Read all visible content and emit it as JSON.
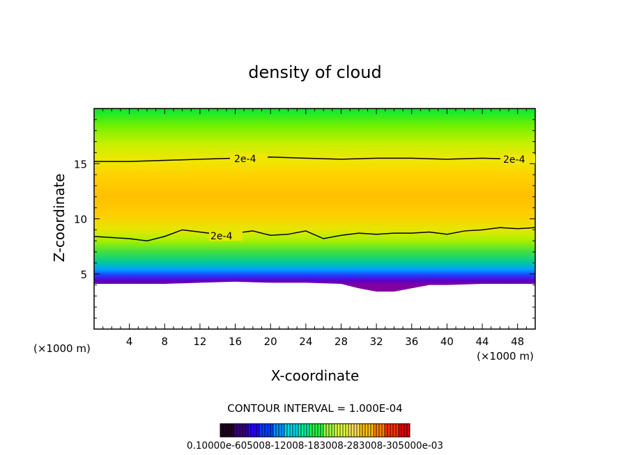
{
  "chart_data": {
    "type": "heatmap",
    "title": "density of cloud",
    "xlabel": "X-coordinate",
    "ylabel": "Z-coordinate",
    "x_unit_label_left": "(×1000 m)",
    "x_unit_label_right": "(×1000 m)",
    "xlim": [
      0,
      50
    ],
    "ylim": [
      0,
      20
    ],
    "x_ticks": [
      4,
      8,
      12,
      16,
      20,
      24,
      28,
      32,
      36,
      40,
      44,
      48
    ],
    "y_ticks": [
      5,
      10,
      15
    ],
    "contour_interval_text": "CONTOUR INTERVAL = 1.000E-04",
    "contour_level_label": "2e-4",
    "colorbar_tick_text": "0.10000e-605008-12008-183008-283008-305000e-03",
    "cloud_base_z": [
      [
        0,
        4.1
      ],
      [
        4,
        4.1
      ],
      [
        8,
        4.1
      ],
      [
        12,
        4.2
      ],
      [
        16,
        4.3
      ],
      [
        20,
        4.2
      ],
      [
        24,
        4.2
      ],
      [
        28,
        4.1
      ],
      [
        30,
        3.7
      ],
      [
        32,
        3.4
      ],
      [
        34,
        3.4
      ],
      [
        36,
        3.7
      ],
      [
        38,
        4.0
      ],
      [
        40,
        4.0
      ],
      [
        44,
        4.1
      ],
      [
        48,
        4.1
      ],
      [
        50,
        4.1
      ]
    ],
    "contour_upper_2e4": [
      [
        0,
        15.2
      ],
      [
        4,
        15.2
      ],
      [
        8,
        15.3
      ],
      [
        12,
        15.4
      ],
      [
        16,
        15.5
      ],
      [
        20,
        15.6
      ],
      [
        24,
        15.5
      ],
      [
        28,
        15.4
      ],
      [
        32,
        15.5
      ],
      [
        36,
        15.5
      ],
      [
        40,
        15.4
      ],
      [
        44,
        15.5
      ],
      [
        48,
        15.4
      ],
      [
        50,
        15.4
      ]
    ],
    "contour_lower_2e4": [
      [
        0,
        8.4
      ],
      [
        4,
        8.2
      ],
      [
        6,
        8.0
      ],
      [
        8,
        8.4
      ],
      [
        10,
        9.0
      ],
      [
        12,
        8.8
      ],
      [
        14,
        8.6
      ],
      [
        16,
        8.7
      ],
      [
        18,
        8.9
      ],
      [
        20,
        8.5
      ],
      [
        22,
        8.6
      ],
      [
        24,
        8.9
      ],
      [
        26,
        8.2
      ],
      [
        28,
        8.5
      ],
      [
        30,
        8.7
      ],
      [
        32,
        8.6
      ],
      [
        34,
        8.7
      ],
      [
        36,
        8.7
      ],
      [
        38,
        8.8
      ],
      [
        40,
        8.6
      ],
      [
        42,
        8.9
      ],
      [
        44,
        9.0
      ],
      [
        46,
        9.2
      ],
      [
        48,
        9.1
      ],
      [
        50,
        9.2
      ]
    ],
    "vertical_profile": [
      {
        "z": 20.0,
        "color": "#00e838"
      },
      {
        "z": 18.5,
        "color": "#6ef000"
      },
      {
        "z": 16.8,
        "color": "#c8f000"
      },
      {
        "z": 15.3,
        "color": "#f0e600"
      },
      {
        "z": 13.8,
        "color": "#ffd000"
      },
      {
        "z": 12.0,
        "color": "#ffc000"
      },
      {
        "z": 10.5,
        "color": "#ffcc00"
      },
      {
        "z": 9.0,
        "color": "#e6e600"
      },
      {
        "z": 8.0,
        "color": "#a6f000"
      },
      {
        "z": 7.0,
        "color": "#40e040"
      },
      {
        "z": 6.0,
        "color": "#00c8a0"
      },
      {
        "z": 5.4,
        "color": "#00a0ff"
      },
      {
        "z": 4.9,
        "color": "#2040ff"
      },
      {
        "z": 4.4,
        "color": "#5a00c8"
      },
      {
        "z": 4.0,
        "color": "#8000a0"
      }
    ],
    "colorbar_colors": [
      "#200020",
      "#3a0080",
      "#2a00ff",
      "#0040ff",
      "#0090ff",
      "#00d8e0",
      "#00f0a0",
      "#20ff40",
      "#a0ff40",
      "#e0ff40",
      "#ffe060",
      "#ffc000",
      "#ff8000",
      "#ff3000",
      "#e00000"
    ]
  }
}
